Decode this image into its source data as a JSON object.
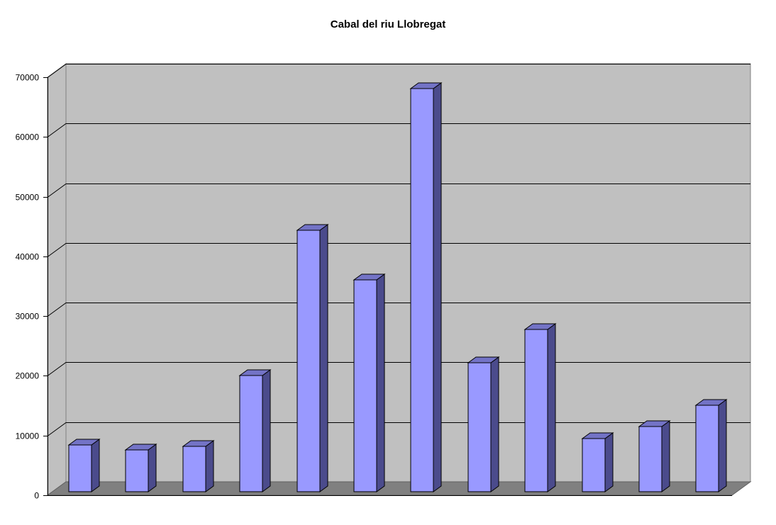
{
  "chart_data": {
    "type": "bar",
    "title": "Cabal del riu Llobregat",
    "xlabel": "",
    "ylabel": "",
    "categories": [
      "",
      "",
      "",
      "",
      "",
      "",
      "",
      "",
      "",
      "",
      "",
      ""
    ],
    "series": [
      {
        "values": [
          7800,
          7000,
          7500,
          19300,
          43500,
          35200,
          67000,
          21400,
          27000,
          8800,
          10800,
          14400
        ]
      }
    ],
    "ylim": [
      0,
      70000
    ],
    "yticks": [
      0,
      10000,
      20000,
      30000,
      40000,
      50000,
      60000,
      70000
    ],
    "grid": true,
    "legend": "none",
    "style": "3d-column",
    "colors": {
      "bar_front": "#9999ff",
      "bar_side": "#4b4b8c",
      "bar_top": "#7373c6",
      "wall": "#c0c0c0",
      "floor": "#808080",
      "gridline": "#000000"
    }
  }
}
